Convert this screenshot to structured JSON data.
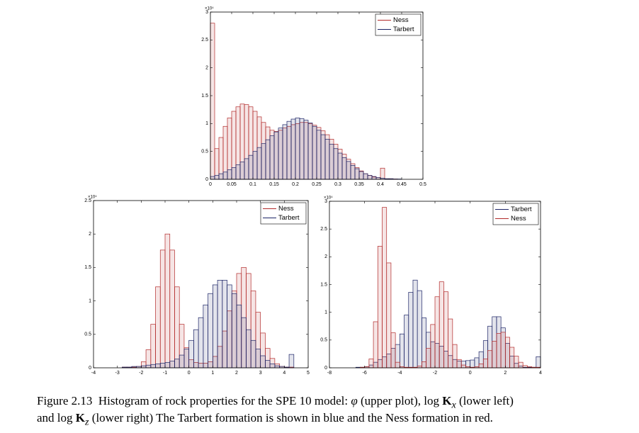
{
  "chart_data": [
    {
      "type": "histogram",
      "y_scale_label": "×10⁴",
      "legend": "upper right",
      "grid": false,
      "bins": [
        0,
        0.01,
        0.02,
        0.03,
        0.04,
        0.05,
        0.06,
        0.07,
        0.08,
        0.09,
        0.1,
        0.11,
        0.12,
        0.13,
        0.14,
        0.15,
        0.16,
        0.17,
        0.18,
        0.19,
        0.2,
        0.21,
        0.22,
        0.23,
        0.24,
        0.25,
        0.26,
        0.27,
        0.28,
        0.29,
        0.3,
        0.31,
        0.32,
        0.33,
        0.34,
        0.35,
        0.36,
        0.37,
        0.38,
        0.39,
        0.4,
        0.41,
        0.42,
        0.43,
        0.44,
        0.45,
        0.46,
        0.47,
        0.48,
        0.49,
        0.5
      ],
      "series": [
        {
          "name": "Ness",
          "color": "#b22a2a",
          "values": [
            2.8,
            0.55,
            0.75,
            0.95,
            1.1,
            1.22,
            1.3,
            1.35,
            1.34,
            1.3,
            1.22,
            1.12,
            1.02,
            0.94,
            0.88,
            0.86,
            0.88,
            0.92,
            0.95,
            0.98,
            1.0,
            1.02,
            1.02,
            1.0,
            0.97,
            0.93,
            0.87,
            0.8,
            0.72,
            0.63,
            0.54,
            0.45,
            0.36,
            0.28,
            0.21,
            0.15,
            0.1,
            0.07,
            0.04,
            0.03,
            0.2,
            0.01,
            0.01,
            0.005,
            0,
            0,
            0,
            0,
            0,
            0
          ]
        },
        {
          "name": "Tarbert",
          "color": "#1c2466",
          "values": [
            0.05,
            0.07,
            0.1,
            0.13,
            0.17,
            0.21,
            0.26,
            0.31,
            0.37,
            0.43,
            0.5,
            0.57,
            0.64,
            0.71,
            0.78,
            0.85,
            0.92,
            0.98,
            1.04,
            1.08,
            1.1,
            1.09,
            1.06,
            1.01,
            0.95,
            0.88,
            0.8,
            0.72,
            0.63,
            0.55,
            0.47,
            0.39,
            0.32,
            0.25,
            0.19,
            0.14,
            0.1,
            0.07,
            0.05,
            0.03,
            0.02,
            0.01,
            0.01,
            0.005,
            0.005,
            0,
            0,
            0,
            0,
            0
          ]
        }
      ],
      "xlim": [
        0,
        0.5
      ],
      "xticks": [
        0,
        0.05,
        0.1,
        0.15,
        0.2,
        0.25,
        0.3,
        0.35,
        0.4,
        0.45,
        0.5
      ],
      "ylim": [
        0,
        3
      ],
      "yticks": [
        0,
        0.5,
        1,
        1.5,
        2,
        2.5,
        3
      ]
    },
    {
      "type": "histogram",
      "y_scale_label": "×10⁴",
      "legend": "upper right",
      "grid": false,
      "bins": [
        -4,
        -3.8,
        -3.6,
        -3.4,
        -3.2,
        -3,
        -2.8,
        -2.6,
        -2.4,
        -2.2,
        -2,
        -1.8,
        -1.6,
        -1.4,
        -1.2,
        -1,
        -0.8,
        -0.6,
        -0.4,
        -0.2,
        0,
        0.2,
        0.4,
        0.6,
        0.8,
        1,
        1.2,
        1.4,
        1.6,
        1.8,
        2,
        2.2,
        2.4,
        2.6,
        2.8,
        3,
        3.2,
        3.4,
        3.6,
        3.8,
        4,
        4.2,
        4.4,
        4.6,
        4.8,
        5
      ],
      "series": [
        {
          "name": "Ness",
          "color": "#b22a2a",
          "values": [
            0,
            0,
            0,
            0,
            0,
            0,
            0.01,
            0.01,
            0.01,
            0.02,
            0.09,
            0.27,
            0.65,
            1.21,
            1.76,
            2.0,
            1.76,
            1.21,
            0.65,
            0.3,
            0.12,
            0.08,
            0.07,
            0.07,
            0.09,
            0.17,
            0.32,
            0.55,
            0.85,
            1.15,
            1.41,
            1.5,
            1.41,
            1.15,
            0.83,
            0.52,
            0.29,
            0.14,
            0.06,
            0.02,
            0.01,
            0.01,
            0,
            0,
            0
          ]
        },
        {
          "name": "Tarbert",
          "color": "#1c2466",
          "values": [
            0,
            0,
            0,
            0,
            0,
            0,
            0.01,
            0.01,
            0.02,
            0.02,
            0.03,
            0.04,
            0.05,
            0.06,
            0.07,
            0.08,
            0.1,
            0.13,
            0.19,
            0.28,
            0.41,
            0.57,
            0.75,
            0.94,
            1.11,
            1.24,
            1.31,
            1.31,
            1.24,
            1.11,
            0.94,
            0.75,
            0.57,
            0.41,
            0.28,
            0.18,
            0.11,
            0.06,
            0.03,
            0.02,
            0.01,
            0.2,
            0,
            0,
            0
          ]
        }
      ],
      "xlim": [
        -4,
        5
      ],
      "xticks": [
        -4,
        -3,
        -2,
        -1,
        0,
        1,
        2,
        3,
        4,
        5
      ],
      "ylim": [
        0,
        2.5
      ],
      "yticks": [
        0,
        0.5,
        1,
        1.5,
        2,
        2.5
      ]
    },
    {
      "type": "histogram",
      "y_scale_label": "×10⁴",
      "legend": "upper right",
      "grid": false,
      "bins": [
        -8,
        -7.75,
        -7.5,
        -7.25,
        -7,
        -6.75,
        -6.5,
        -6.25,
        -6,
        -5.75,
        -5.5,
        -5.25,
        -5,
        -4.75,
        -4.5,
        -4.25,
        -4,
        -3.75,
        -3.5,
        -3.25,
        -3,
        -2.75,
        -2.5,
        -2.25,
        -2,
        -1.75,
        -1.5,
        -1.25,
        -1,
        -0.75,
        -0.5,
        -0.25,
        0,
        0.25,
        0.5,
        0.75,
        1,
        1.25,
        1.5,
        1.75,
        2,
        2.25,
        2.5,
        2.75,
        3,
        3.25,
        3.5,
        3.75,
        4
      ],
      "series": [
        {
          "name": "Tarbert",
          "color": "#1c2466",
          "values": [
            0,
            0,
            0,
            0,
            0,
            0,
            0.01,
            0.01,
            0.02,
            0.05,
            0.1,
            0.15,
            0.2,
            0.25,
            0.35,
            0.42,
            0.61,
            0.95,
            1.36,
            1.58,
            1.39,
            0.9,
            0.64,
            0.47,
            0.44,
            0.39,
            0.3,
            0.22,
            0.15,
            0.12,
            0.12,
            0.13,
            0.14,
            0.18,
            0.29,
            0.49,
            0.75,
            0.92,
            0.92,
            0.72,
            0.44,
            0.21,
            0.08,
            0.03,
            0.01,
            0.01,
            0.01,
            0.2
          ]
        },
        {
          "name": "Ness",
          "color": "#b22a2a",
          "values": [
            0,
            0,
            0,
            0,
            0,
            0,
            0,
            0.01,
            0.02,
            0.16,
            0.83,
            2.19,
            2.89,
            1.89,
            0.63,
            0.1,
            0.02,
            0.01,
            0.01,
            0.01,
            0.03,
            0.11,
            0.35,
            0.78,
            1.28,
            1.55,
            1.37,
            0.88,
            0.42,
            0.15,
            0.05,
            0.02,
            0.01,
            0.02,
            0.07,
            0.16,
            0.31,
            0.48,
            0.62,
            0.64,
            0.55,
            0.37,
            0.21,
            0.1,
            0.04,
            0.02,
            0.01,
            0.01
          ]
        }
      ],
      "xlim": [
        -8,
        4
      ],
      "xticks": [
        -8,
        -6,
        -4,
        -2,
        0,
        2,
        4
      ],
      "ylim": [
        0,
        3
      ],
      "yticks": [
        0,
        0.5,
        1,
        1.5,
        2,
        2.5,
        3
      ]
    }
  ],
  "caption": {
    "parts": [
      "Figure 2.13",
      "Histogram of rock properties for the SPE 10 model: ",
      "φ",
      " (upper plot), log ",
      "K",
      "x",
      " (lower left)",
      "and log ",
      "K",
      "z",
      " (lower right) The Tarbert formation is shown in blue and the Ness formation in red."
    ]
  }
}
